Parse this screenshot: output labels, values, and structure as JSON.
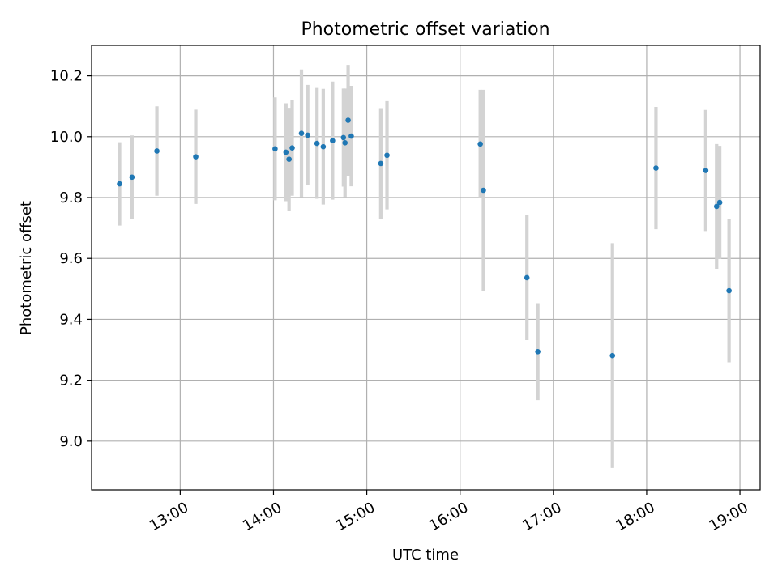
{
  "chart_data": {
    "type": "scatter",
    "title": "Photometric offset variation",
    "xlabel": "UTC time",
    "ylabel": "Photometric offset",
    "grid": true,
    "colors": {
      "point": "#1f77b4",
      "errorbar": "#d3d3d3"
    },
    "x_unit": "UTC",
    "xlim": [
      "12:03",
      "19:13"
    ],
    "ylim": [
      8.84,
      10.3
    ],
    "x_ticks": [
      "13:00",
      "14:00",
      "15:00",
      "16:00",
      "17:00",
      "18:00",
      "19:00"
    ],
    "y_ticks": [
      9.0,
      9.2,
      9.4,
      9.6,
      9.8,
      10.0,
      10.2
    ],
    "y_tick_labels": [
      "9.0",
      "9.2",
      "9.4",
      "9.6",
      "9.8",
      "10.0",
      "10.2"
    ],
    "points": [
      {
        "x": "12:21",
        "y": 9.845,
        "err": 0.137
      },
      {
        "x": "12:29",
        "y": 9.867,
        "err": 0.137
      },
      {
        "x": "12:45",
        "y": 9.953,
        "err": 0.147
      },
      {
        "x": "13:10",
        "y": 9.934,
        "err": 0.155
      },
      {
        "x": "14:01",
        "y": 9.96,
        "err": 0.169
      },
      {
        "x": "14:08",
        "y": 9.949,
        "err": 0.161
      },
      {
        "x": "14:10",
        "y": 9.926,
        "err": 0.169
      },
      {
        "x": "14:12",
        "y": 9.963,
        "err": 0.157
      },
      {
        "x": "14:18",
        "y": 10.011,
        "err": 0.21
      },
      {
        "x": "14:22",
        "y": 10.005,
        "err": 0.165
      },
      {
        "x": "14:28",
        "y": 9.978,
        "err": 0.182
      },
      {
        "x": "14:32",
        "y": 9.967,
        "err": 0.19
      },
      {
        "x": "14:38",
        "y": 9.987,
        "err": 0.194
      },
      {
        "x": "14:45",
        "y": 9.997,
        "err": 0.161
      },
      {
        "x": "14:46",
        "y": 9.98,
        "err": 0.178
      },
      {
        "x": "14:48",
        "y": 10.054,
        "err": 0.182
      },
      {
        "x": "14:50",
        "y": 10.002,
        "err": 0.165
      },
      {
        "x": "15:09",
        "y": 9.912,
        "err": 0.182
      },
      {
        "x": "15:13",
        "y": 9.939,
        "err": 0.178
      },
      {
        "x": "16:13",
        "y": 9.976,
        "err": 0.178
      },
      {
        "x": "16:15",
        "y": 9.824,
        "err": 0.33
      },
      {
        "x": "16:43",
        "y": 9.537,
        "err": 0.205
      },
      {
        "x": "16:50",
        "y": 9.294,
        "err": 0.159
      },
      {
        "x": "17:38",
        "y": 9.281,
        "err": 0.369
      },
      {
        "x": "18:06",
        "y": 9.897,
        "err": 0.201
      },
      {
        "x": "18:38",
        "y": 9.889,
        "err": 0.199
      },
      {
        "x": "18:45",
        "y": 9.771,
        "err": 0.205
      },
      {
        "x": "18:47",
        "y": 9.784,
        "err": 0.186
      },
      {
        "x": "18:53",
        "y": 9.494,
        "err": 0.235
      }
    ]
  }
}
